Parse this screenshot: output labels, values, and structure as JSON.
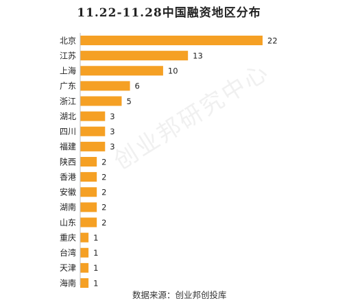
{
  "chart_data": {
    "type": "bar",
    "orientation": "horizontal",
    "title": "11.22-11.28中国融资地区分布",
    "categories": [
      "北京",
      "江苏",
      "上海",
      "广东",
      "浙江",
      "湖北",
      "四川",
      "福建",
      "陕西",
      "香港",
      "安徽",
      "湖南",
      "山东",
      "重庆",
      "台湾",
      "天津",
      "海南"
    ],
    "values": [
      22,
      13,
      10,
      6,
      5,
      3,
      3,
      3,
      2,
      2,
      2,
      2,
      2,
      1,
      1,
      1,
      1
    ],
    "xlim": [
      0,
      22
    ],
    "grid": false,
    "legend": "none",
    "bar_color": "#F5A024",
    "source": "数据来源：创业邦创投库",
    "watermark": "创业邦研究中心"
  }
}
